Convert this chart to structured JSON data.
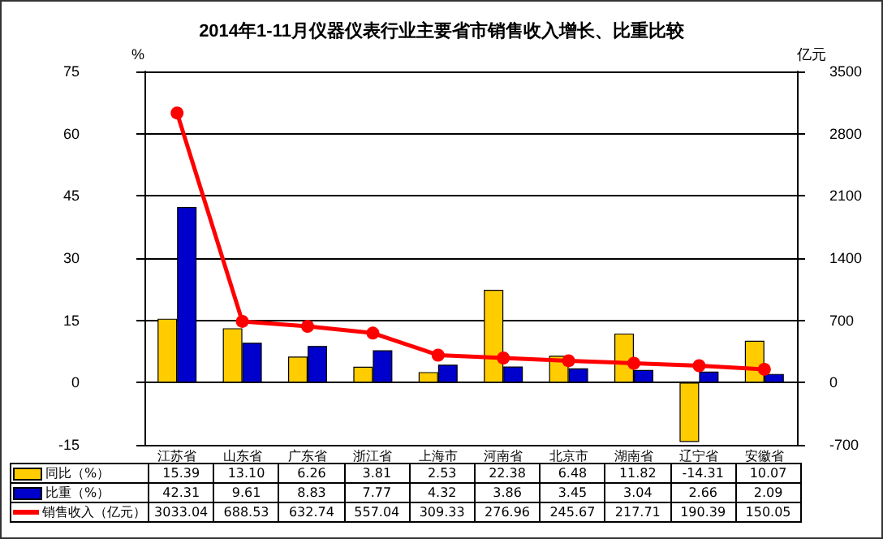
{
  "chart_data": {
    "type": "bar",
    "title": "2014年1-11月仪器仪表行业主要省市销售收入增长、比重比较",
    "ylabel": "%",
    "y2label": "亿元",
    "categories": [
      "江苏省",
      "山东省",
      "广东省",
      "浙江省",
      "上海市",
      "河南省",
      "北京市",
      "湖南省",
      "辽宁省",
      "安徽省"
    ],
    "series": [
      {
        "name": "同比（%）",
        "color": "#ffcc00",
        "values": [
          15.39,
          13.1,
          6.26,
          3.81,
          2.53,
          22.38,
          6.48,
          11.82,
          -14.31,
          10.07
        ],
        "value_labels": [
          "15.39",
          "13.10",
          "6.26",
          "3.81",
          "2.53",
          "22.38",
          "6.48",
          "11.82",
          "-14.31",
          "10.07"
        ]
      },
      {
        "name": "比重（%）",
        "color": "#0000cc",
        "values": [
          42.31,
          9.61,
          8.83,
          7.77,
          4.32,
          3.86,
          3.45,
          3.04,
          2.66,
          2.09
        ],
        "value_labels": [
          "42.31",
          "9.61",
          "8.83",
          "7.77",
          "4.32",
          "3.86",
          "3.45",
          "3.04",
          "2.66",
          "2.09"
        ]
      },
      {
        "name": "销售收入（亿元）",
        "type": "line",
        "axis": "y2",
        "color": "#ff0000",
        "marker": "circle",
        "values": [
          3033.04,
          688.53,
          632.74,
          557.04,
          309.33,
          276.96,
          245.67,
          217.71,
          190.39,
          150.05
        ],
        "value_labels": [
          "3033.04",
          "688.53",
          "632.74",
          "557.04",
          "309.33",
          "276.96",
          "245.67",
          "217.71",
          "190.39",
          "150.05"
        ]
      }
    ],
    "ylim": [
      -15,
      75
    ],
    "yticks": [
      -15,
      0,
      15,
      30,
      45,
      60,
      75
    ],
    "y2lim": [
      -700,
      3500
    ],
    "y2ticks": [
      -700,
      0,
      700,
      1400,
      2100,
      2800,
      3500
    ],
    "grid": "y",
    "legend": "bottom"
  }
}
